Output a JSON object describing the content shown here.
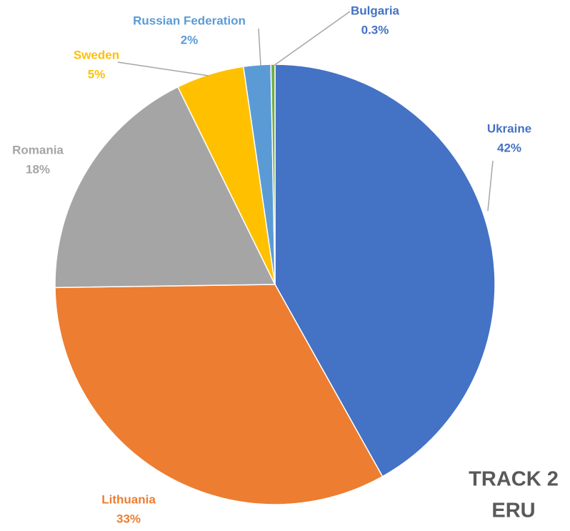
{
  "chart_data": {
    "type": "pie",
    "categories": [
      "Ukraine",
      "Lithuania",
      "Romania",
      "Sweden",
      "Russian Federation",
      "Bulgaria"
    ],
    "values": [
      42,
      33,
      18,
      5,
      2,
      0.3
    ],
    "value_labels": [
      "42%",
      "33%",
      "18%",
      "5%",
      "2%",
      "0.3%"
    ],
    "colors": [
      "#4472c4",
      "#ed7d31",
      "#a5a5a5",
      "#ffc000",
      "#5b9bd5",
      "#70ad47"
    ],
    "label_colors": [
      "#4472c4",
      "#ed7d31",
      "#a5a5a5",
      "#ffc000",
      "#5b9bd5",
      "#4472c4"
    ],
    "annotation": [
      "TRACK 2",
      "ERU"
    ]
  }
}
